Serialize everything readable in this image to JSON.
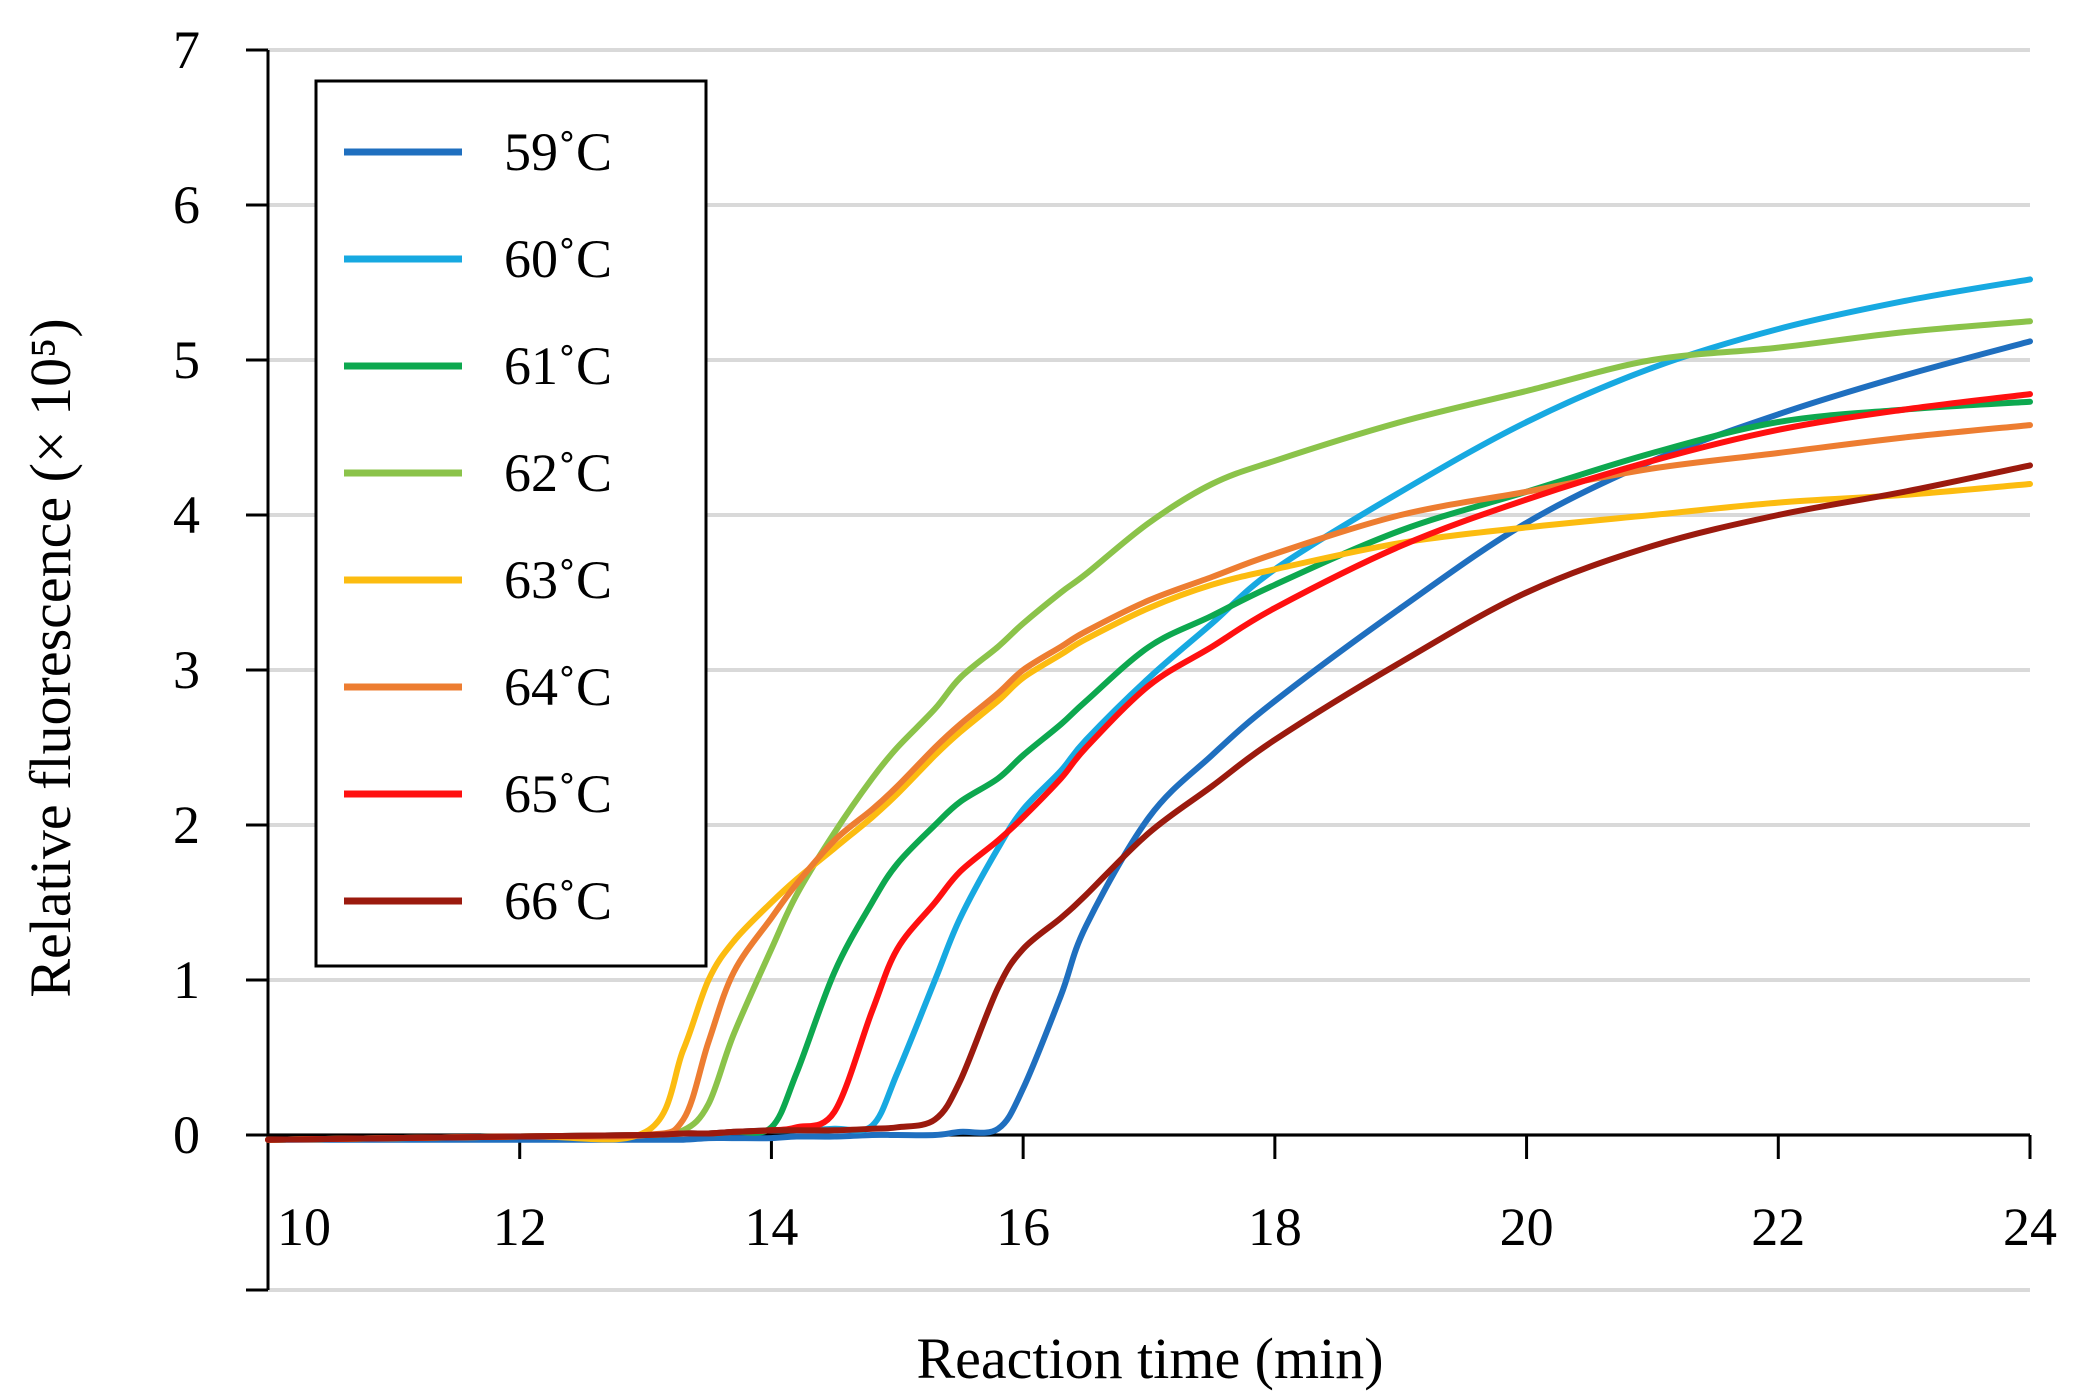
{
  "chart_data": {
    "type": "line",
    "xlabel": "Reaction time (min)",
    "ylabel": "Relative fluorescence (× 10⁵)",
    "xlim": [
      10,
      24
    ],
    "ylim": [
      -1,
      7
    ],
    "xticks": [
      10,
      12,
      14,
      16,
      18,
      20,
      22,
      24
    ],
    "yticks": [
      0,
      1,
      2,
      3,
      4,
      5,
      6,
      7
    ],
    "grid": true,
    "legend_position": "top-left",
    "x": [
      10,
      12,
      13,
      13.3,
      13.5,
      13.7,
      14,
      14.2,
      14.5,
      14.8,
      15,
      15.3,
      15.5,
      15.8,
      16,
      16.3,
      16.5,
      17,
      17.5,
      18,
      19,
      20,
      21,
      22,
      23,
      24
    ],
    "series": [
      {
        "name": "59˚C",
        "color": "#1f6fbf",
        "values": [
          -0.03,
          -0.03,
          -0.03,
          -0.03,
          -0.02,
          -0.02,
          -0.02,
          -0.01,
          -0.01,
          0.0,
          0.0,
          0.0,
          0.02,
          0.04,
          0.3,
          0.9,
          1.35,
          2.05,
          2.45,
          2.8,
          3.4,
          3.95,
          4.35,
          4.65,
          4.9,
          5.12
        ]
      },
      {
        "name": "60˚C",
        "color": "#17a9e1",
        "values": [
          -0.03,
          -0.01,
          0.0,
          0.01,
          0.01,
          0.02,
          0.03,
          0.03,
          0.04,
          0.06,
          0.4,
          1.0,
          1.4,
          1.85,
          2.1,
          2.35,
          2.55,
          2.95,
          3.3,
          3.65,
          4.15,
          4.6,
          4.95,
          5.2,
          5.38,
          5.52
        ]
      },
      {
        "name": "61˚C",
        "color": "#0da84f",
        "values": [
          -0.03,
          -0.01,
          0.0,
          0.01,
          0.01,
          0.02,
          0.05,
          0.4,
          1.05,
          1.5,
          1.75,
          2.0,
          2.15,
          2.3,
          2.45,
          2.65,
          2.8,
          3.15,
          3.35,
          3.55,
          3.9,
          4.15,
          4.4,
          4.6,
          4.68,
          4.73
        ]
      },
      {
        "name": "62˚C",
        "color": "#8bc34a",
        "values": [
          -0.03,
          -0.01,
          0.0,
          0.03,
          0.2,
          0.65,
          1.2,
          1.55,
          1.95,
          2.3,
          2.5,
          2.75,
          2.95,
          3.15,
          3.3,
          3.5,
          3.62,
          3.95,
          4.2,
          4.35,
          4.6,
          4.8,
          5.0,
          5.08,
          5.18,
          5.25
        ]
      },
      {
        "name": "63˚C",
        "color": "#fcbc10",
        "values": [
          -0.03,
          -0.01,
          0.02,
          0.55,
          1.0,
          1.25,
          1.5,
          1.65,
          1.85,
          2.05,
          2.2,
          2.45,
          2.6,
          2.8,
          2.95,
          3.1,
          3.2,
          3.4,
          3.55,
          3.65,
          3.82,
          3.92,
          4.0,
          4.08,
          4.13,
          4.2
        ]
      },
      {
        "name": "64˚C",
        "color": "#ed7d31",
        "values": [
          -0.03,
          -0.01,
          0.0,
          0.1,
          0.6,
          1.05,
          1.4,
          1.62,
          1.9,
          2.1,
          2.25,
          2.5,
          2.65,
          2.85,
          3.0,
          3.15,
          3.25,
          3.45,
          3.6,
          3.75,
          4.0,
          4.15,
          4.3,
          4.4,
          4.5,
          4.58
        ]
      },
      {
        "name": "65˚C",
        "color": "#ff1010",
        "values": [
          -0.03,
          -0.01,
          0.0,
          0.01,
          0.01,
          0.02,
          0.03,
          0.05,
          0.15,
          0.8,
          1.2,
          1.5,
          1.7,
          1.9,
          2.05,
          2.3,
          2.5,
          2.9,
          3.15,
          3.4,
          3.8,
          4.1,
          4.35,
          4.55,
          4.68,
          4.78
        ]
      },
      {
        "name": "66˚C",
        "color": "#9b1a0e",
        "values": [
          -0.03,
          -0.01,
          0.0,
          0.01,
          0.01,
          0.02,
          0.03,
          0.03,
          0.03,
          0.04,
          0.05,
          0.1,
          0.35,
          0.95,
          1.2,
          1.4,
          1.55,
          1.95,
          2.25,
          2.55,
          3.05,
          3.5,
          3.8,
          4.0,
          4.15,
          4.32
        ]
      }
    ]
  }
}
